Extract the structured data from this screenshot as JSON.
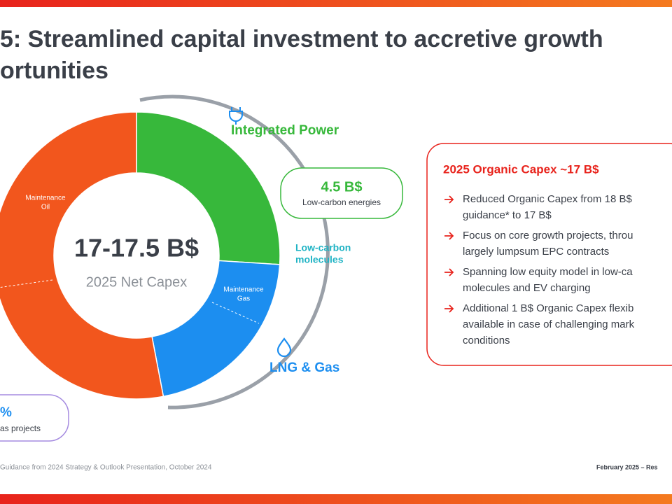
{
  "header": {
    "title_lines": [
      "5: Streamlined capital investment to accretive growth",
      "ortunities"
    ]
  },
  "chart_data": {
    "type": "donut",
    "values": [
      26,
      21,
      53
    ],
    "colors": [
      "#37b83b",
      "#1c8ef0",
      "#f2561d"
    ],
    "center_value": "17-17.5 B$",
    "center_label": "2025 Net Capex",
    "segment_labels": [
      [
        "Maintenance",
        "Oil"
      ],
      [
        "Maintenance",
        "Gas"
      ]
    ]
  },
  "callouts": {
    "integrated_power": "Integrated Power",
    "low_carbon_value": "4.5 B$",
    "low_carbon_label": "Low-carbon energies",
    "low_carbon_molecules": [
      "Low-carbon",
      "molecules"
    ],
    "lng_gas": "LNG & Gas",
    "partial_value": "%",
    "partial_label": "as projects"
  },
  "panel": {
    "title": "2025 Organic Capex ~17 B$",
    "bullets": [
      [
        "Reduced Organic Capex from 18 B$",
        "guidance* to 17 B$"
      ],
      [
        "Focus on core growth projects, throu",
        "largely lumpsum EPC contracts"
      ],
      [
        "Spanning low equity model in low-ca",
        "molecules and EV charging"
      ],
      [
        "Additional 1 B$ Organic Capex flexib",
        "available in case of challenging mark",
        "conditions"
      ]
    ]
  },
  "footer": {
    "note": "Guidance from 2024 Strategy & Outlook Presentation, October 2024",
    "date": "February 2025 – Res"
  }
}
